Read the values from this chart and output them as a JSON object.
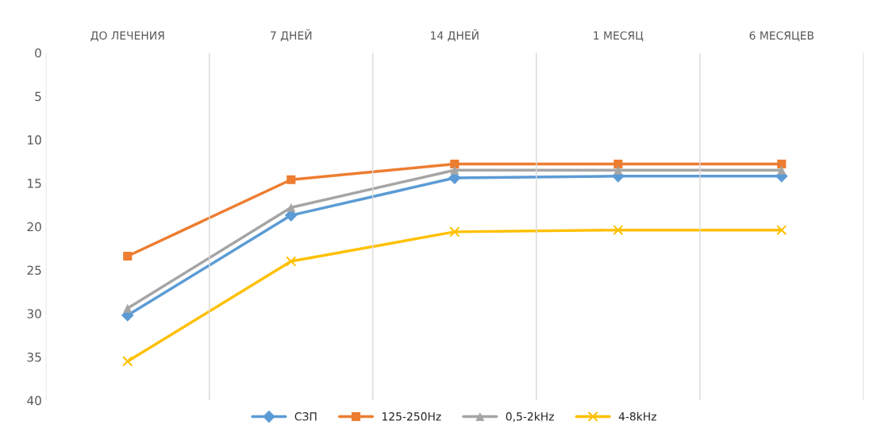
{
  "chart_data": {
    "type": "line",
    "categories": [
      "ДО ЛЕЧЕНИЯ",
      "7 ДНЕЙ",
      "14 ДНЕЙ",
      "1 МЕСЯЦ",
      "6 МЕСЯЦЕВ"
    ],
    "series": [
      {
        "name": "СЗП",
        "color": "#5b9bd5",
        "marker": "diamond",
        "values": [
          30.2,
          18.7,
          14.4,
          14.2,
          14.2
        ]
      },
      {
        "name": "125-250Hz",
        "color": "#ed7d31",
        "marker": "square",
        "values": [
          23.4,
          14.6,
          12.8,
          12.8,
          12.8
        ]
      },
      {
        "name": "0,5-2kHz",
        "color": "#a5a5a5",
        "marker": "triangle",
        "values": [
          29.4,
          17.8,
          13.5,
          13.5,
          13.5
        ]
      },
      {
        "name": "4-8kHz",
        "color": "#ffc000",
        "marker": "cross",
        "values": [
          35.5,
          24.0,
          20.6,
          20.4,
          20.4
        ]
      }
    ],
    "ylim": [
      40,
      0
    ],
    "yticks": [
      0,
      5,
      10,
      15,
      20,
      25,
      30,
      35,
      40
    ],
    "grid": "x",
    "legend": "bottom"
  }
}
